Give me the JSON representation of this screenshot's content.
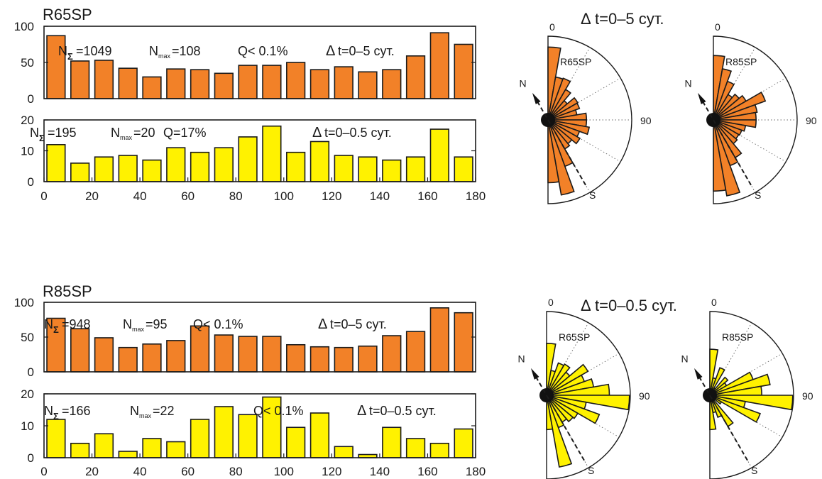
{
  "chart_data": [
    {
      "type": "bar",
      "id": "h1",
      "title": "R65SP",
      "ylim": [
        0,
        100
      ],
      "yticks": [
        0,
        50,
        100
      ],
      "xlim": [
        0,
        180
      ],
      "xticks": [],
      "color": "#f28128",
      "bin_centers": [
        5,
        15,
        25,
        35,
        45,
        55,
        65,
        75,
        85,
        95,
        105,
        115,
        125,
        135,
        145,
        155,
        165,
        175
      ],
      "values": [
        87,
        52,
        53,
        42,
        30,
        41,
        40,
        35,
        46,
        46,
        50,
        40,
        44,
        37,
        40,
        59,
        91,
        75
      ],
      "annotations": {
        "n_sym": "N",
        "n_sub": "Σ",
        "n_val": "=1049",
        "nmax_sym": "N",
        "nmax_sub": "max",
        "nmax_val": "=108",
        "q": "Q< 0.1%",
        "dt_delta": "Δ",
        "dt": "t=0–5 сут."
      }
    },
    {
      "type": "bar",
      "id": "h2",
      "ylim": [
        0,
        20
      ],
      "yticks": [
        0,
        10,
        20
      ],
      "xlim": [
        0,
        180
      ],
      "xticks": [
        0,
        20,
        40,
        60,
        80,
        100,
        120,
        140,
        160,
        180
      ],
      "color": "#fff200",
      "bin_centers": [
        5,
        15,
        25,
        35,
        45,
        55,
        65,
        75,
        85,
        95,
        105,
        115,
        125,
        135,
        145,
        155,
        165,
        175
      ],
      "values": [
        12,
        6,
        8,
        8.5,
        7,
        11,
        9.5,
        11,
        14.5,
        18,
        9.5,
        13,
        8.5,
        8,
        7,
        8,
        17,
        8
      ],
      "annotations": {
        "n_sym": "N",
        "n_sub": "Σ",
        "n_val": "=195",
        "nmax_sym": "N",
        "nmax_sub": "max",
        "nmax_val": "=20",
        "q": "Q=17%",
        "dt_delta": "Δ",
        "dt": "t=0–0.5 сут."
      }
    },
    {
      "type": "bar",
      "id": "h3",
      "title": "R85SP",
      "ylim": [
        0,
        100
      ],
      "yticks": [
        0,
        50,
        100
      ],
      "xlim": [
        0,
        180
      ],
      "xticks": [],
      "color": "#f28128",
      "bin_centers": [
        5,
        15,
        25,
        35,
        45,
        55,
        65,
        75,
        85,
        95,
        105,
        115,
        125,
        135,
        145,
        155,
        165,
        175
      ],
      "values": [
        77,
        62,
        49,
        35,
        40,
        45,
        66,
        53,
        51,
        51,
        39,
        36,
        35,
        37,
        52,
        58,
        92,
        85
      ],
      "annotations": {
        "n_sym": "N",
        "n_sub": "Σ",
        "n_val": "=948",
        "nmax_sym": "N",
        "nmax_sub": "max",
        "nmax_val": "=95",
        "q": "Q< 0.1%",
        "dt_delta": "Δ",
        "dt": "t=0–5 сут."
      }
    },
    {
      "type": "bar",
      "id": "h4",
      "ylim": [
        0,
        20
      ],
      "yticks": [
        0,
        10,
        20
      ],
      "xlim": [
        0,
        180
      ],
      "xticks": [
        0,
        20,
        40,
        60,
        80,
        100,
        120,
        140,
        160,
        180
      ],
      "color": "#fff200",
      "bin_centers": [
        5,
        15,
        25,
        35,
        45,
        55,
        65,
        75,
        85,
        95,
        105,
        115,
        125,
        135,
        145,
        155,
        165,
        175
      ],
      "values": [
        12,
        4.5,
        7.5,
        2,
        6,
        5,
        12,
        16,
        13.5,
        19,
        9.5,
        14,
        3.5,
        1,
        9.5,
        6,
        4.5,
        9
      ],
      "annotations": {
        "n_sym": "N",
        "n_sub": "Σ",
        "n_val": "=166",
        "nmax_sym": "N",
        "nmax_sub": "max",
        "nmax_val": "=22",
        "q": "Q< 0.1%",
        "dt_delta": "Δ",
        "dt": "t=0–0.5 сут."
      }
    },
    {
      "type": "polar-bar",
      "id": "r1",
      "label": "R65SP",
      "color": "#f28128",
      "angle_labels": {
        "zero": "0",
        "ninety": "90",
        "n": "N",
        "s": "S"
      },
      "bin_width_deg": 10,
      "radii": [
        0.87,
        0.52,
        0.53,
        0.42,
        0.3,
        0.41,
        0.4,
        0.35,
        0.46,
        0.46,
        0.5,
        0.4,
        0.44,
        0.37,
        0.4,
        0.59,
        0.91,
        0.75
      ]
    },
    {
      "type": "polar-bar",
      "id": "r2",
      "label": "R85SP",
      "color": "#f28128",
      "angle_labels": {
        "zero": "0",
        "ninety": "90",
        "n": "N",
        "s": "S"
      },
      "bin_width_deg": 10,
      "radii": [
        0.77,
        0.62,
        0.49,
        0.35,
        0.4,
        0.45,
        0.66,
        0.53,
        0.51,
        0.51,
        0.39,
        0.36,
        0.35,
        0.37,
        0.52,
        0.58,
        0.92,
        0.85
      ]
    },
    {
      "type": "polar-bar",
      "id": "r3",
      "label": "R65SP",
      "color": "#fff200",
      "angle_labels": {
        "zero": "0",
        "ninety": "90",
        "n": "N",
        "s": "S"
      },
      "bin_width_deg": 10,
      "radii": [
        0.62,
        0.3,
        0.41,
        0.43,
        0.36,
        0.57,
        0.48,
        0.57,
        0.75,
        0.99,
        0.48,
        0.67,
        0.43,
        0.41,
        0.37,
        0.41,
        0.87,
        0.41
      ]
    },
    {
      "type": "polar-bar",
      "id": "r4",
      "label": "R85SP",
      "color": "#fff200",
      "angle_labels": {
        "zero": "0",
        "ninety": "90",
        "n": "N",
        "s": "S"
      },
      "bin_width_deg": 10,
      "radii": [
        0.55,
        0.21,
        0.35,
        0.1,
        0.28,
        0.23,
        0.55,
        0.73,
        0.62,
        0.99,
        0.43,
        0.64,
        0.16,
        0.05,
        0.43,
        0.28,
        0.21,
        0.41
      ]
    }
  ],
  "rose_titles": [
    {
      "delta": "Δ",
      "text": "t=0–5 сут."
    },
    {
      "delta": "Δ",
      "text": "t=0–0.5 сут."
    }
  ]
}
